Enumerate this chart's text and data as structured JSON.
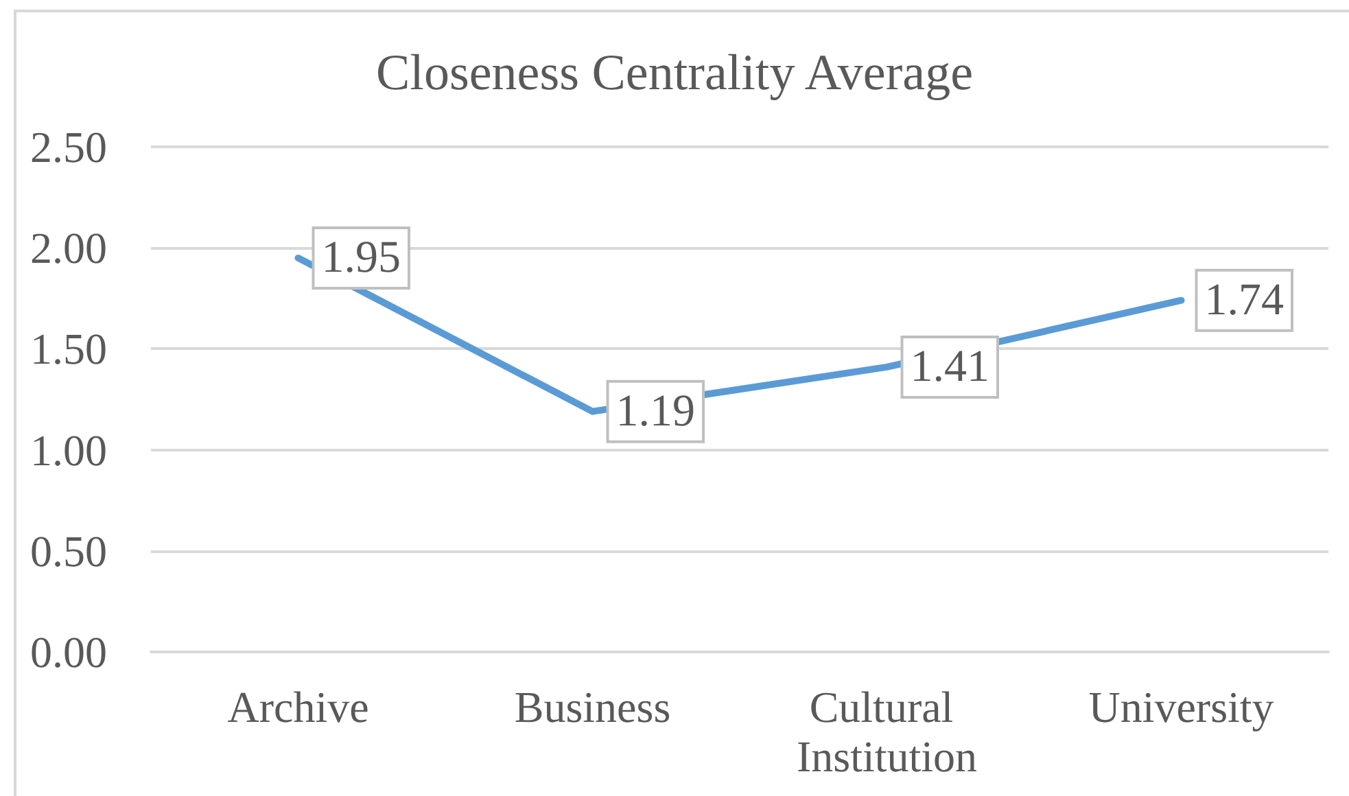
{
  "chart_data": {
    "type": "line",
    "title": "Closeness Centrality Average",
    "categories": [
      "Archive",
      "Business",
      "Cultural Institution",
      "University"
    ],
    "series": [
      {
        "color": "#5b9bd5",
        "values": [
          1.95,
          1.19,
          1.41,
          1.74
        ]
      }
    ],
    "ylim": [
      0,
      2.5
    ],
    "yticks": [
      {
        "value": 0,
        "label": "0.00"
      },
      {
        "value": 0.5,
        "label": "0.50"
      },
      {
        "value": 1,
        "label": "1.00"
      },
      {
        "value": 1.5,
        "label": "1.50"
      },
      {
        "value": 2,
        "label": "2.00"
      },
      {
        "value": 2.5,
        "label": "2.50"
      }
    ],
    "grid": "y",
    "marker": "none",
    "line_style": "solid",
    "data_labels": true
  }
}
